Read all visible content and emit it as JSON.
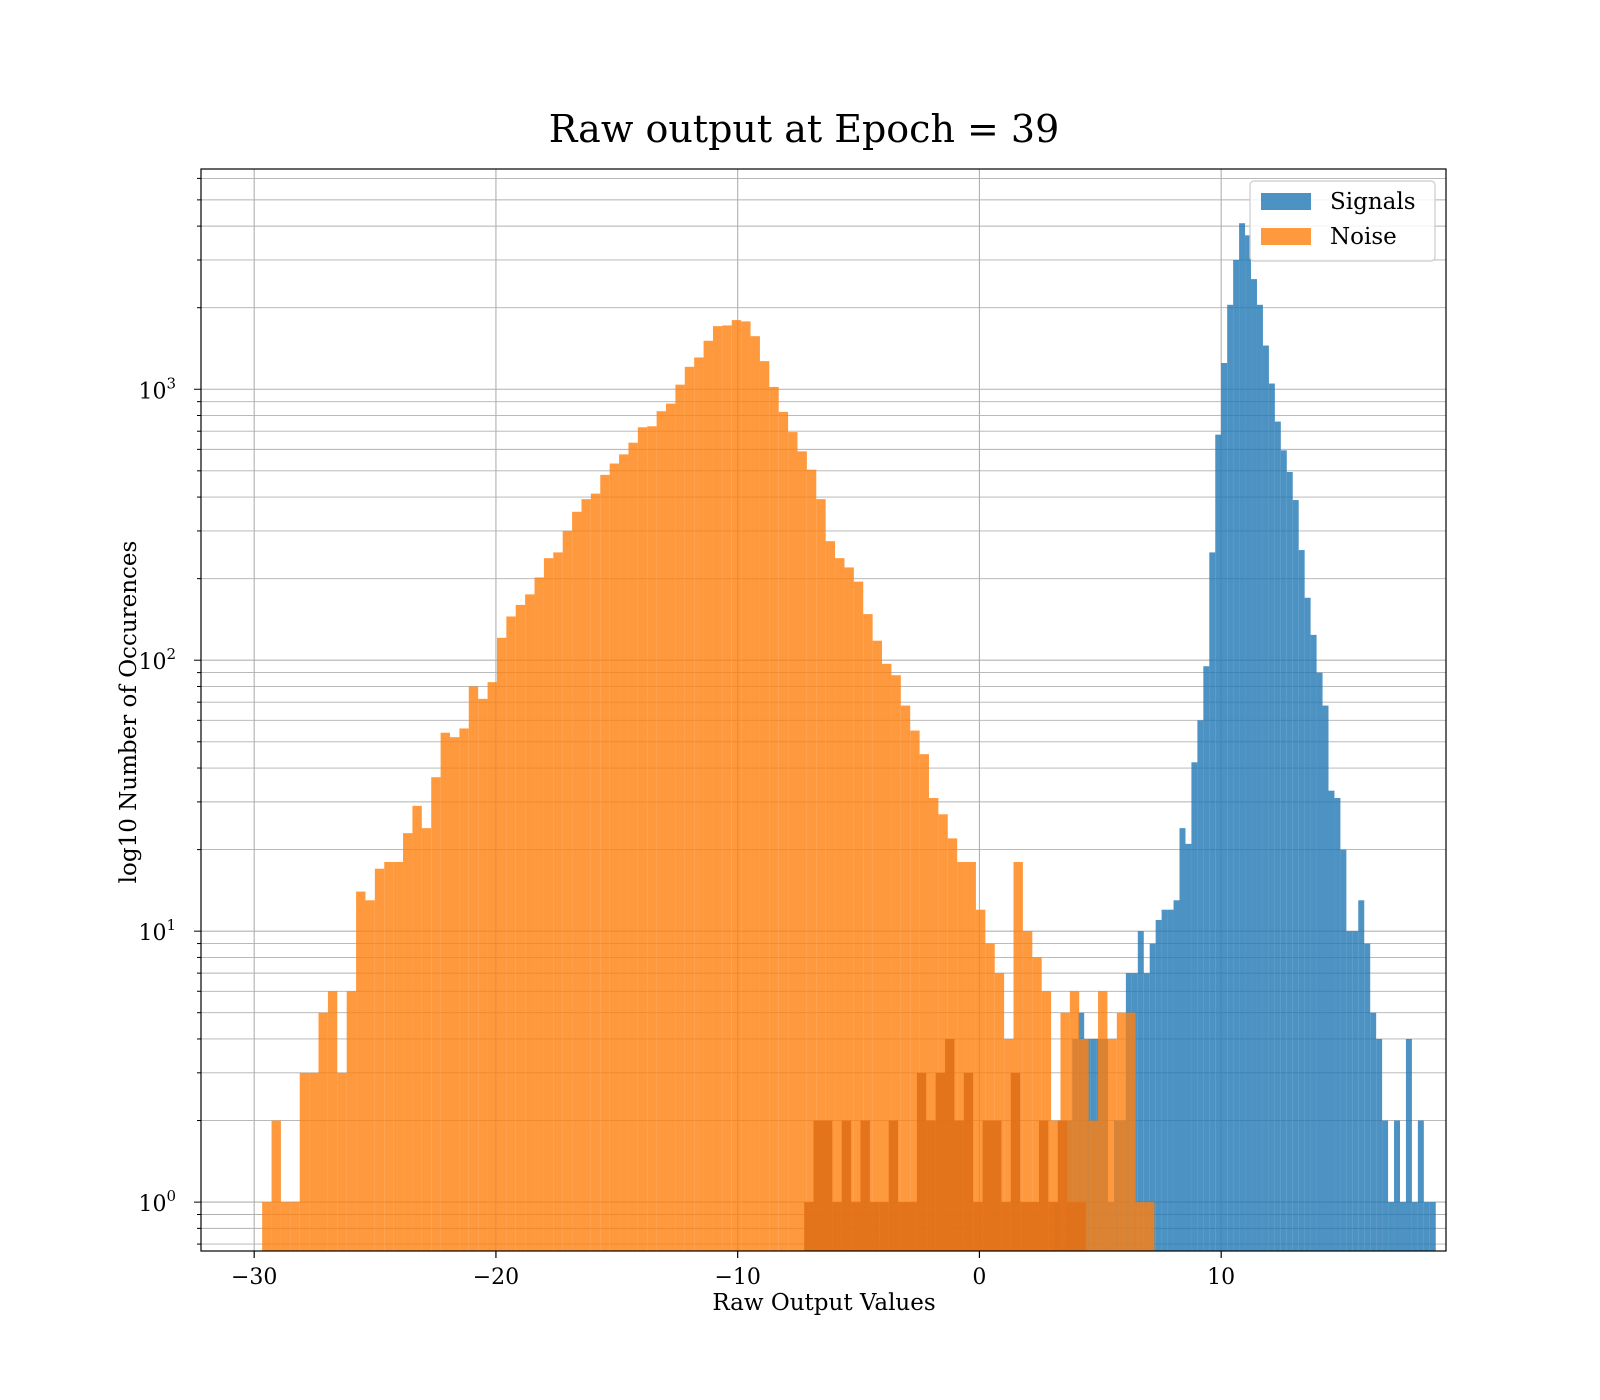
{
  "chart_data": {
    "type": "bar",
    "title": "Raw output at Epoch = 39",
    "xlabel": "Raw Output Values",
    "ylabel": "log10 Number of Occurences",
    "yscale": "log",
    "xlim": [
      -32.2,
      19.3
    ],
    "ylim": [
      0.66,
      6500
    ],
    "x_ticks": [
      -30,
      -20,
      -10,
      0,
      10
    ],
    "x_tick_labels": [
      "−30",
      "−20",
      "−10",
      "0",
      "10"
    ],
    "y_ticks": [
      1,
      10,
      100,
      1000
    ],
    "y_tick_labels": [
      "10",
      "10",
      "10",
      "10"
    ],
    "y_tick_exponents": [
      "0",
      "1",
      "2",
      "3"
    ],
    "grid": true,
    "legend": "top-right",
    "series": [
      {
        "name": "Signals",
        "color": "#1f77b4",
        "bin_start": 3.1,
        "bin_width": 0.2465,
        "counts": [
          1,
          0,
          2,
          4,
          5,
          4,
          4,
          4,
          4,
          1,
          2,
          2,
          7,
          7,
          10,
          7,
          9,
          11,
          12,
          12,
          13,
          24,
          21,
          42,
          60,
          95,
          250,
          680,
          1250,
          2050,
          3000,
          4100,
          3700,
          2550,
          2050,
          1450,
          1050,
          760,
          595,
          495,
          390,
          255,
          170,
          124,
          90,
          68,
          33,
          31,
          20,
          10,
          10,
          13,
          9,
          5,
          4,
          2,
          1,
          2,
          1,
          4,
          1,
          2,
          1,
          1
        ]
      },
      {
        "name": "Noise",
        "color": "#ff7f0e",
        "bin_start": -29.67,
        "bin_width": 0.3885,
        "counts": [
          1,
          2,
          1,
          1,
          3,
          3,
          5,
          6,
          3,
          6,
          14,
          13,
          17,
          18,
          18,
          23,
          29,
          24,
          37,
          54,
          52,
          56,
          80,
          72,
          83,
          121,
          145,
          160,
          175,
          202,
          238,
          250,
          300,
          353,
          393,
          412,
          483,
          532,
          575,
          635,
          724,
          730,
          830,
          885,
          1040,
          1210,
          1310,
          1510,
          1710,
          1720,
          1800,
          1780,
          1570,
          1270,
          1020,
          825,
          695,
          590,
          505,
          393,
          275,
          238,
          220,
          195,
          148,
          118,
          97,
          88,
          68,
          55,
          45,
          31,
          27,
          22,
          18,
          18,
          12,
          9,
          7,
          4,
          18,
          10,
          8,
          6,
          2,
          5,
          6,
          4,
          2,
          6,
          4,
          5,
          5,
          1,
          1
        ]
      },
      {
        "name": "",
        "color": "#e07018",
        "bin_start": -7.25,
        "bin_width": 0.3885,
        "counts": [
          1,
          2,
          2,
          1,
          2,
          1,
          2,
          1,
          1,
          2,
          1,
          1,
          3,
          2,
          3,
          4,
          2,
          3,
          1,
          2,
          2,
          1,
          3,
          1,
          1,
          2,
          1,
          2,
          1,
          1
        ]
      }
    ]
  }
}
